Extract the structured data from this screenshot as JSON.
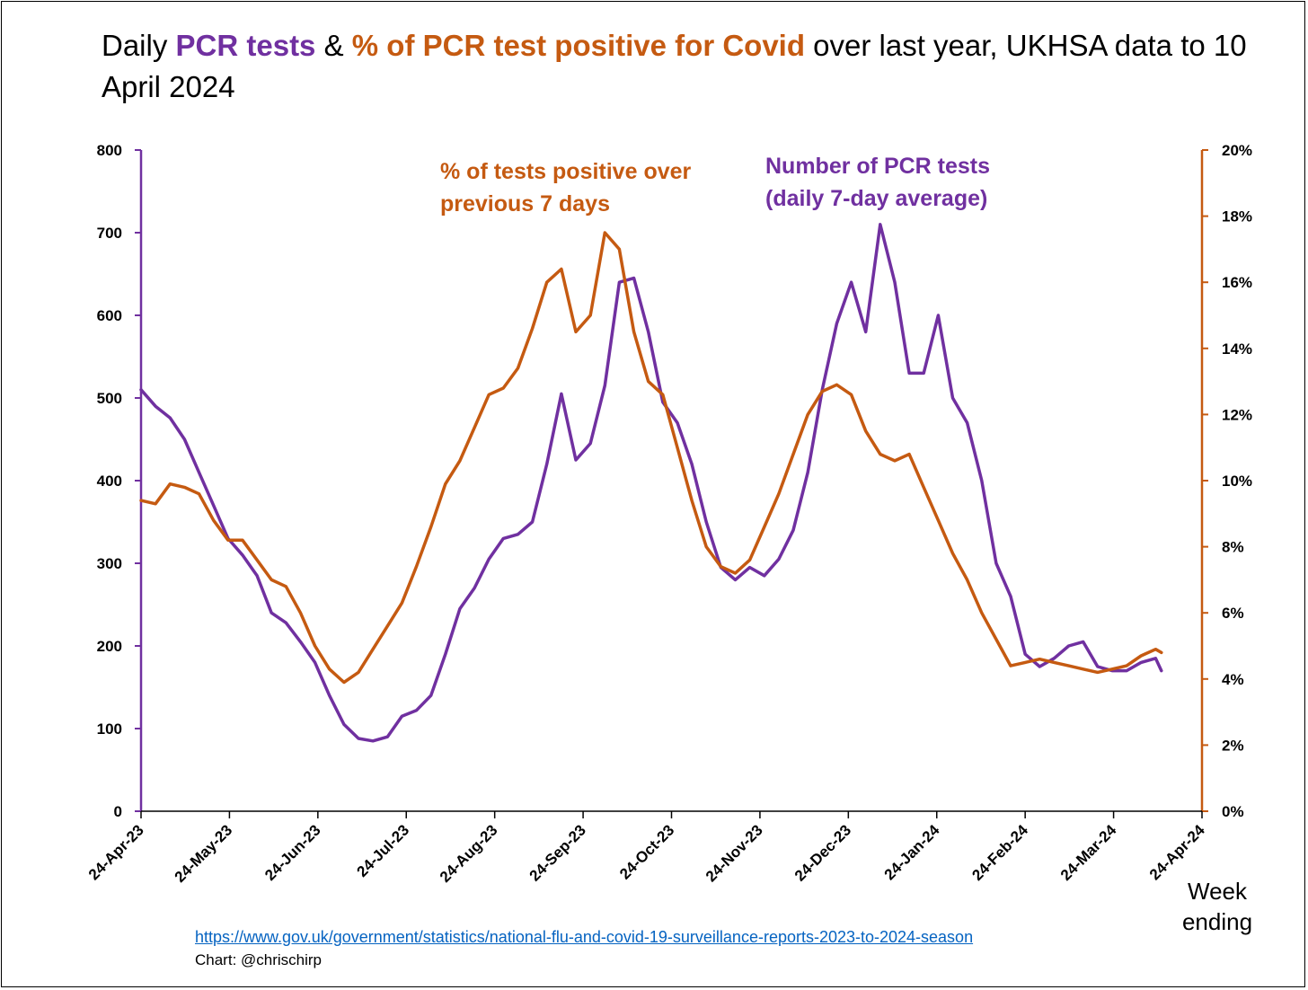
{
  "title": {
    "part1": "Daily ",
    "part2": "PCR tests",
    "part3": " & ",
    "part4": "% of PCR test positive for Covid",
    "part5": " over last year, UKHSA data to 10 April 2024"
  },
  "x_axis_label": "Week ending",
  "source_url": "https://www.gov.uk/government/statistics/national-flu-and-covid-19-surveillance-reports-2023-to-2024-season",
  "credit": "Chart: @chrischirp",
  "colors": {
    "tests": "#7030a0",
    "positivity": "#c55a11"
  },
  "chart_data": {
    "type": "line",
    "x_ticks": [
      "24-Apr-23",
      "24-May-23",
      "24-Jun-23",
      "24-Jul-23",
      "24-Aug-23",
      "24-Sep-23",
      "24-Oct-23",
      "24-Nov-23",
      "24-Dec-23",
      "24-Jan-24",
      "24-Feb-24",
      "24-Mar-24",
      "24-Apr-24"
    ],
    "y_left": {
      "ticks": [
        "0",
        "100",
        "200",
        "300",
        "400",
        "500",
        "600",
        "700",
        "800"
      ],
      "lim": [
        0,
        800
      ]
    },
    "y_right": {
      "ticks": [
        "0%",
        "2%",
        "4%",
        "6%",
        "8%",
        "10%",
        "12%",
        "14%",
        "16%",
        "18%",
        "20%"
      ],
      "lim": [
        0,
        20
      ]
    },
    "annotations": [
      {
        "text": "% of tests positive over",
        "series": "positivity"
      },
      {
        "text": "previous 7 days",
        "series": "positivity"
      },
      {
        "text": "Number of PCR tests",
        "series": "tests"
      },
      {
        "text": "(daily 7-day average)",
        "series": "tests"
      }
    ],
    "series": [
      {
        "name": "Number of PCR tests (daily 7-day average)",
        "axis": "left",
        "x": [
          "2023-04-24",
          "2023-04-29",
          "2023-05-04",
          "2023-05-09",
          "2023-05-14",
          "2023-05-19",
          "2023-05-24",
          "2023-05-29",
          "2023-06-03",
          "2023-06-08",
          "2023-06-13",
          "2023-06-18",
          "2023-06-23",
          "2023-06-28",
          "2023-07-03",
          "2023-07-08",
          "2023-07-13",
          "2023-07-18",
          "2023-07-23",
          "2023-07-28",
          "2023-08-02",
          "2023-08-07",
          "2023-08-12",
          "2023-08-17",
          "2023-08-22",
          "2023-08-27",
          "2023-09-01",
          "2023-09-06",
          "2023-09-11",
          "2023-09-16",
          "2023-09-21",
          "2023-09-26",
          "2023-10-01",
          "2023-10-06",
          "2023-10-11",
          "2023-10-16",
          "2023-10-21",
          "2023-10-26",
          "2023-10-31",
          "2023-11-05",
          "2023-11-10",
          "2023-11-15",
          "2023-11-20",
          "2023-11-25",
          "2023-11-30",
          "2023-12-05",
          "2023-12-10",
          "2023-12-15",
          "2023-12-20",
          "2023-12-25",
          "2023-12-30",
          "2024-01-04",
          "2024-01-09",
          "2024-01-14",
          "2024-01-19",
          "2024-01-24",
          "2024-01-29",
          "2024-02-03",
          "2024-02-08",
          "2024-02-13",
          "2024-02-18",
          "2024-02-23",
          "2024-02-28",
          "2024-03-04",
          "2024-03-09",
          "2024-03-14",
          "2024-03-19",
          "2024-03-24",
          "2024-03-29",
          "2024-04-03",
          "2024-04-08",
          "2024-04-10"
        ],
        "values": [
          510,
          490,
          476,
          450,
          410,
          370,
          330,
          310,
          285,
          240,
          228,
          205,
          180,
          140,
          105,
          88,
          85,
          90,
          115,
          122,
          140,
          190,
          245,
          270,
          305,
          330,
          335,
          350,
          420,
          505,
          425,
          445,
          515,
          640,
          645,
          580,
          495,
          470,
          420,
          350,
          295,
          280,
          295,
          285,
          305,
          340,
          410,
          510,
          590,
          640,
          580,
          710,
          640,
          530,
          530,
          600,
          500,
          470,
          400,
          300,
          260,
          190,
          175,
          185,
          200,
          205,
          175,
          170,
          170,
          180,
          185,
          170
        ]
      },
      {
        "name": "% of tests positive over previous 7 days",
        "axis": "right",
        "x": [
          "2023-04-24",
          "2023-04-29",
          "2023-05-04",
          "2023-05-09",
          "2023-05-14",
          "2023-05-19",
          "2023-05-24",
          "2023-05-29",
          "2023-06-03",
          "2023-06-08",
          "2023-06-13",
          "2023-06-18",
          "2023-06-23",
          "2023-06-28",
          "2023-07-03",
          "2023-07-08",
          "2023-07-13",
          "2023-07-18",
          "2023-07-23",
          "2023-07-28",
          "2023-08-02",
          "2023-08-07",
          "2023-08-12",
          "2023-08-17",
          "2023-08-22",
          "2023-08-27",
          "2023-09-01",
          "2023-09-06",
          "2023-09-11",
          "2023-09-16",
          "2023-09-21",
          "2023-09-26",
          "2023-10-01",
          "2023-10-06",
          "2023-10-11",
          "2023-10-16",
          "2023-10-21",
          "2023-10-26",
          "2023-10-31",
          "2023-11-05",
          "2023-11-10",
          "2023-11-15",
          "2023-11-20",
          "2023-11-25",
          "2023-11-30",
          "2023-12-05",
          "2023-12-10",
          "2023-12-15",
          "2023-12-20",
          "2023-12-25",
          "2023-12-30",
          "2024-01-04",
          "2024-01-09",
          "2024-01-14",
          "2024-01-19",
          "2024-01-24",
          "2024-01-29",
          "2024-02-03",
          "2024-02-08",
          "2024-02-13",
          "2024-02-18",
          "2024-02-23",
          "2024-02-28",
          "2024-03-04",
          "2024-03-09",
          "2024-03-14",
          "2024-03-19",
          "2024-03-24",
          "2024-03-29",
          "2024-04-03",
          "2024-04-08",
          "2024-04-10"
        ],
        "values": [
          9.4,
          9.3,
          9.9,
          9.8,
          9.6,
          8.8,
          8.2,
          8.2,
          7.6,
          7.0,
          6.8,
          6.0,
          5.0,
          4.3,
          3.9,
          4.2,
          4.9,
          5.6,
          6.3,
          7.4,
          8.6,
          9.9,
          10.6,
          11.6,
          12.6,
          12.8,
          13.4,
          14.6,
          16.0,
          16.4,
          14.5,
          15.0,
          17.5,
          17.0,
          14.5,
          13.0,
          12.6,
          11.0,
          9.4,
          8.0,
          7.4,
          7.2,
          7.6,
          8.6,
          9.6,
          10.8,
          12.0,
          12.7,
          12.9,
          12.6,
          11.5,
          10.8,
          10.6,
          10.8,
          9.8,
          8.8,
          7.8,
          7.0,
          6.0,
          5.2,
          4.4,
          4.5,
          4.6,
          4.5,
          4.4,
          4.3,
          4.2,
          4.3,
          4.4,
          4.7,
          4.9,
          4.8
        ]
      }
    ]
  }
}
